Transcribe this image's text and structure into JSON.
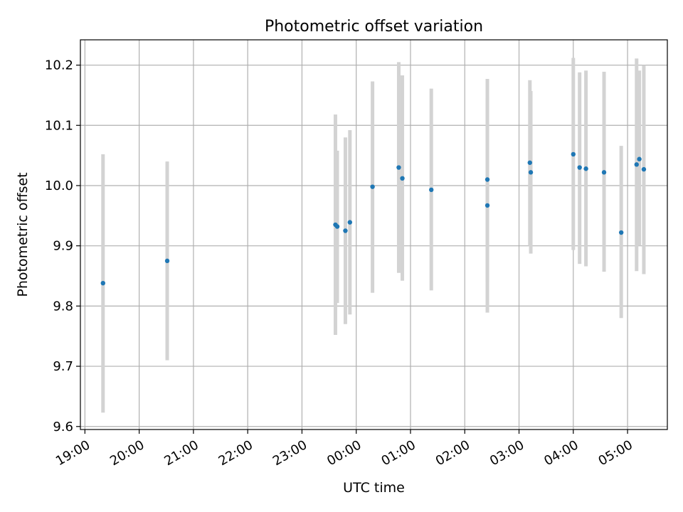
{
  "chart_data": {
    "type": "scatter",
    "title": "Photometric offset variation",
    "xlabel": "UTC time",
    "ylabel": "Photometric offset",
    "grid": true,
    "legend": "none",
    "x_tick_labels": [
      "19:00",
      "20:00",
      "21:00",
      "22:00",
      "23:00",
      "00:00",
      "01:00",
      "02:00",
      "03:00",
      "04:00",
      "05:00"
    ],
    "y_ticks": [
      9.6,
      9.7,
      9.8,
      9.9,
      10.0,
      10.1,
      10.2
    ],
    "y_tick_labels": [
      "9.6",
      "9.7",
      "9.8",
      "9.9",
      "10.0",
      "10.1",
      "10.2"
    ],
    "xlim": [
      "18:55",
      "05:44"
    ],
    "ylim": [
      9.595,
      10.242
    ],
    "colors": {
      "point": "#1f77b4",
      "errorbar": "#d3d3d3",
      "grid": "#b0b0b0"
    },
    "points": [
      {
        "x": "19:20",
        "y": 9.838,
        "yerr_low": 9.623,
        "yerr_high": 10.052
      },
      {
        "x": "20:31",
        "y": 9.875,
        "yerr_low": 9.71,
        "yerr_high": 10.04
      },
      {
        "x": "23:37",
        "y": 9.935,
        "yerr_low": 9.752,
        "yerr_high": 10.118
      },
      {
        "x": "23:39",
        "y": 9.932,
        "yerr_low": 9.805,
        "yerr_high": 10.058
      },
      {
        "x": "23:48",
        "y": 9.925,
        "yerr_low": 9.77,
        "yerr_high": 10.08
      },
      {
        "x": "23:53",
        "y": 9.939,
        "yerr_low": 9.786,
        "yerr_high": 10.092
      },
      {
        "x": "00:18",
        "y": 9.998,
        "yerr_low": 9.822,
        "yerr_high": 10.173
      },
      {
        "x": "00:47",
        "y": 10.03,
        "yerr_low": 9.855,
        "yerr_high": 10.205
      },
      {
        "x": "00:51",
        "y": 10.012,
        "yerr_low": 9.842,
        "yerr_high": 10.183
      },
      {
        "x": "01:23",
        "y": 9.993,
        "yerr_low": 9.826,
        "yerr_high": 10.161
      },
      {
        "x": "02:25",
        "y": 10.01,
        "yerr_low": 9.84,
        "yerr_high": 10.177
      },
      {
        "x": "02:25",
        "y": 9.967,
        "yerr_low": 9.789,
        "yerr_high": 10.146
      },
      {
        "x": "03:12",
        "y": 10.038,
        "yerr_low": 9.9,
        "yerr_high": 10.175
      },
      {
        "x": "03:13",
        "y": 10.022,
        "yerr_low": 9.887,
        "yerr_high": 10.157
      },
      {
        "x": "04:00",
        "y": 10.052,
        "yerr_low": 9.893,
        "yerr_high": 10.212
      },
      {
        "x": "04:07",
        "y": 10.03,
        "yerr_low": 9.87,
        "yerr_high": 10.188
      },
      {
        "x": "04:14",
        "y": 10.028,
        "yerr_low": 9.866,
        "yerr_high": 10.191
      },
      {
        "x": "04:34",
        "y": 10.022,
        "yerr_low": 9.857,
        "yerr_high": 10.189
      },
      {
        "x": "04:53",
        "y": 9.922,
        "yerr_low": 9.78,
        "yerr_high": 10.066
      },
      {
        "x": "05:10",
        "y": 10.035,
        "yerr_low": 9.858,
        "yerr_high": 10.211
      },
      {
        "x": "05:13",
        "y": 10.044,
        "yerr_low": 9.9,
        "yerr_high": 10.191
      },
      {
        "x": "05:18",
        "y": 10.027,
        "yerr_low": 9.853,
        "yerr_high": 10.2
      }
    ]
  }
}
